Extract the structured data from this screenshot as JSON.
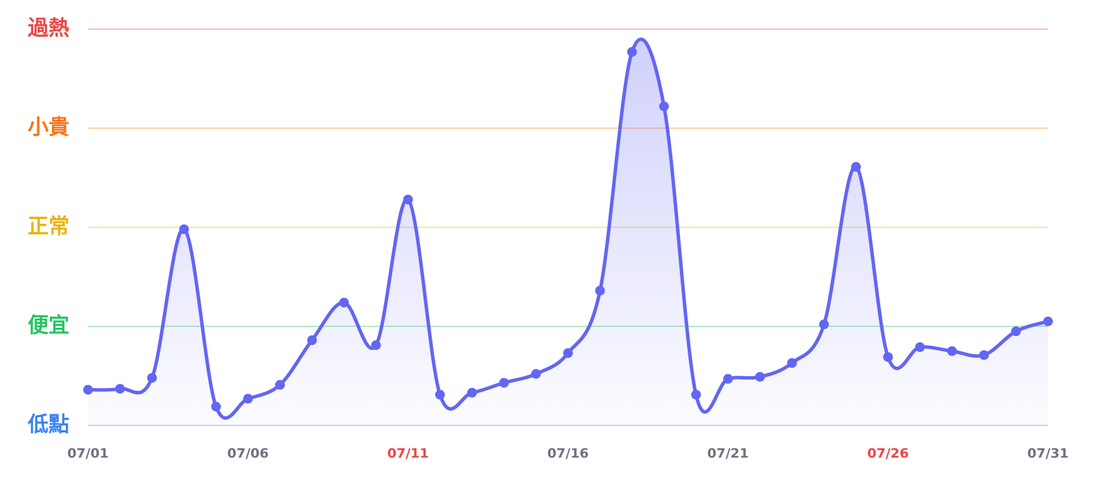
{
  "chart_data": {
    "type": "line",
    "categories": [
      "07/01",
      null,
      null,
      null,
      null,
      "07/06",
      null,
      null,
      null,
      null,
      "07/11",
      null,
      null,
      null,
      null,
      "07/16",
      null,
      null,
      null,
      null,
      "07/21",
      null,
      null,
      null,
      null,
      "07/26",
      null,
      null,
      null,
      null,
      "07/31"
    ],
    "x_label_colors": [
      "#6b7280",
      null,
      null,
      null,
      null,
      "#6b7280",
      null,
      null,
      null,
      null,
      "#ef4444",
      null,
      null,
      null,
      null,
      "#6b7280",
      null,
      null,
      null,
      null,
      "#6b7280",
      null,
      null,
      null,
      null,
      "#ef4444",
      null,
      null,
      null,
      null,
      "#6b7280"
    ],
    "series": [
      {
        "color": "#6366f1",
        "values": [
          0.36,
          0.37,
          0.48,
          1.98,
          0.19,
          0.27,
          0.41,
          0.86,
          1.24,
          0.81,
          2.28,
          0.31,
          0.33,
          0.43,
          0.52,
          0.73,
          1.36,
          3.77,
          3.22,
          0.31,
          0.47,
          0.49,
          0.63,
          1.02,
          2.61,
          0.69,
          0.79,
          0.75,
          0.71,
          0.95,
          1.05
        ]
      }
    ],
    "ylim": [
      0,
      4
    ],
    "yticks": [
      {
        "value": 0,
        "label": "低點"
      },
      {
        "value": 1,
        "label": "便宜"
      },
      {
        "value": 2,
        "label": "正常"
      },
      {
        "value": 3,
        "label": "小貴"
      },
      {
        "value": 4,
        "label": "過熱"
      }
    ],
    "ytick_colors": [
      "#3b82f6",
      "#22c55e",
      "#eab308",
      "#f97316",
      "#ef4444"
    ],
    "grid": true,
    "smooth": true
  }
}
